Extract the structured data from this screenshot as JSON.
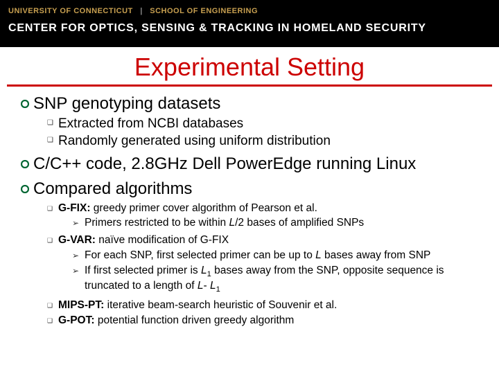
{
  "banner": {
    "org1": "UNIVERSITY OF CONNECTICUT",
    "org2": "SCHOOL OF ENGINEERING",
    "center": "CENTER FOR OPTICS, SENSING & TRACKING IN HOMELAND SECURITY",
    "gold": "#c8a050",
    "bg": "#000000"
  },
  "title": {
    "text": "Experimental Setting",
    "color": "#cc0000"
  },
  "bullet_style": {
    "lvl1_fill": "#006633",
    "lvl2_glyph": "❑",
    "lvl3_glyph": "➢"
  },
  "items": [
    {
      "text": "SNP genotyping datasets",
      "sub": [
        {
          "text": "Extracted from NCBI databases"
        },
        {
          "text": "Randomly generated using uniform distribution"
        }
      ]
    },
    {
      "text": "C/C++ code, 2.8GHz Dell PowerEdge running Linux"
    },
    {
      "text": "Compared algorithms",
      "sub_small": [
        {
          "bold": "G-FIX:",
          "rest": " greedy primer cover algorithm of Pearson et al.",
          "sub": [
            {
              "html": "Primers restricted to be within <span class=\"ital\">L</span>/2 bases of amplified SNPs"
            }
          ]
        },
        {
          "bold": "G-VAR:",
          "rest": " naïve modification of G-FIX",
          "sub": [
            {
              "html": "For each SNP, first selected primer can be up to <span class=\"ital\">L</span> bases away from SNP"
            },
            {
              "html": "If first selected primer is <span class=\"ital\">L</span><span class=\"sub\">1</span> bases away from the SNP, opposite sequence is truncated to a length of <span class=\"ital\">L</span>- <span class=\"ital\">L</span><span class=\"sub\">1</span>"
            }
          ]
        },
        {
          "bold": "MIPS-PT:",
          "rest": " iterative beam-search heuristic of Souvenir et al."
        },
        {
          "bold": "G-POT:",
          "rest": " potential function driven greedy algorithm"
        }
      ]
    }
  ]
}
